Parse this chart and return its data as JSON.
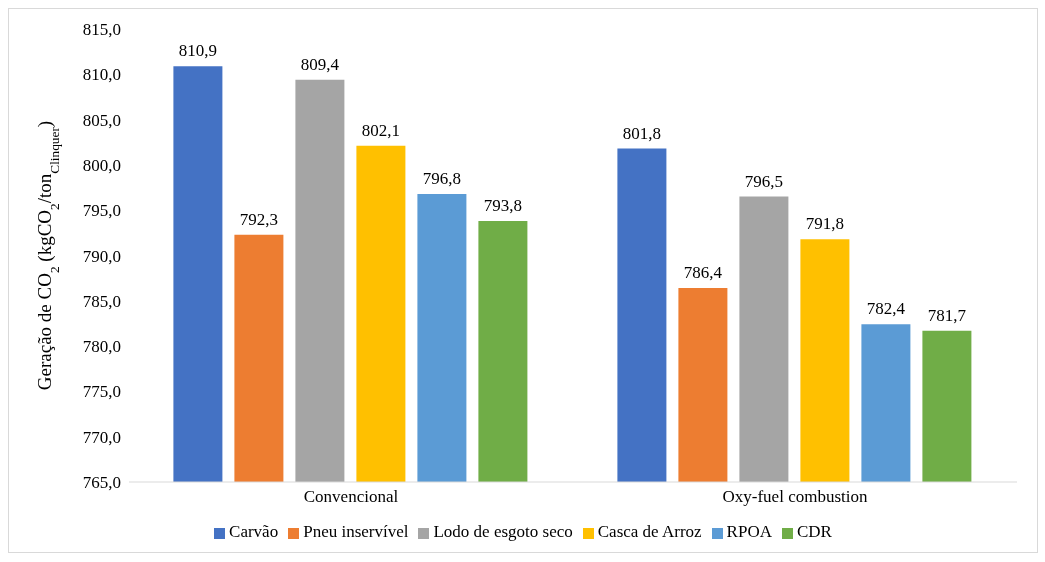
{
  "chart_data": {
    "type": "bar",
    "ylabel": "Geração de CO$_{2}$ (kgCO$_{2}$/ton$_{Clinquer}$)",
    "categories": [
      "Convencional",
      "Oxy-fuel combustion"
    ],
    "series": [
      {
        "name": "Carvão",
        "color": "#4472c4",
        "values": [
          810.9,
          801.8
        ],
        "value_labels": [
          "810,9",
          "801,8"
        ]
      },
      {
        "name": "Pneu inservível",
        "color": "#ed7d31",
        "values": [
          792.3,
          786.4
        ],
        "value_labels": [
          "792,3",
          "786,4"
        ]
      },
      {
        "name": "Lodo de esgoto seco",
        "color": "#a5a5a5",
        "values": [
          809.4,
          796.5
        ],
        "value_labels": [
          "809,4",
          "796,5"
        ]
      },
      {
        "name": "Casca de Arroz",
        "color": "#ffc000",
        "values": [
          802.1,
          791.8
        ],
        "value_labels": [
          "802,1",
          "791,8"
        ]
      },
      {
        "name": "RPOA",
        "color": "#5b9bd5",
        "values": [
          796.8,
          782.4
        ],
        "value_labels": [
          "796,8",
          "782,4"
        ]
      },
      {
        "name": "CDR",
        "color": "#70ad47",
        "values": [
          793.8,
          781.7
        ],
        "value_labels": [
          "793,8",
          "781,7"
        ]
      }
    ],
    "ylim": [
      765,
      815
    ],
    "yticks": [
      {
        "value": 765,
        "label": "765,0"
      },
      {
        "value": 770,
        "label": "770,0"
      },
      {
        "value": 775,
        "label": "775,0"
      },
      {
        "value": 780,
        "label": "780,0"
      },
      {
        "value": 785,
        "label": "785,0"
      },
      {
        "value": 790,
        "label": "790,0"
      },
      {
        "value": 795,
        "label": "795,0"
      },
      {
        "value": 800,
        "label": "800,0"
      },
      {
        "value": 805,
        "label": "805,0"
      },
      {
        "value": 810,
        "label": "810,0"
      },
      {
        "value": 815,
        "label": "815,0"
      }
    ],
    "grid": false,
    "legend": "bottom"
  }
}
